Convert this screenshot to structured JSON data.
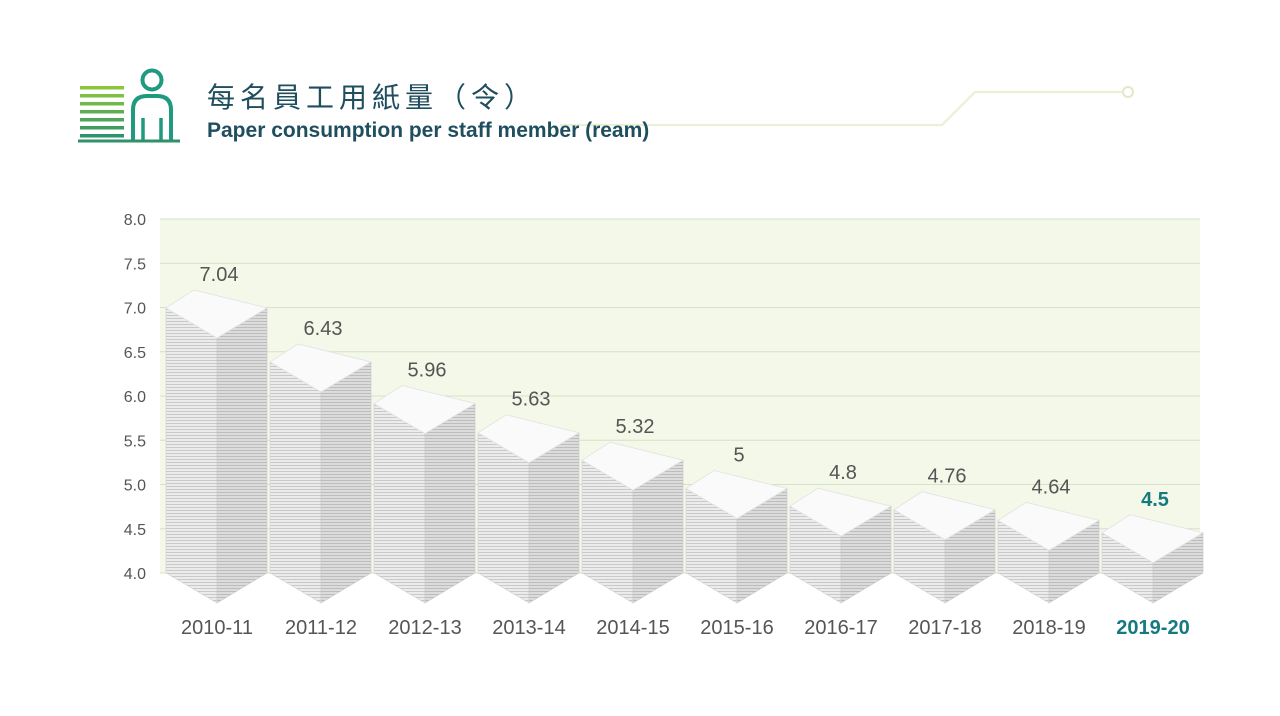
{
  "header": {
    "title_zh": "每名員工用紙量（令）",
    "title_en": "Paper consumption per staff member (ream)",
    "icon": "staff-paper-icon"
  },
  "colors": {
    "title": "#1f4e5f",
    "accent_green": "#8cc63f",
    "plot_background": "#f3f8e8",
    "highlight": "#147a7f",
    "stack_face": "#e6e6e6"
  },
  "chart_data": {
    "type": "bar",
    "title": "Paper consumption per staff member (ream)",
    "categories": [
      "2010-11",
      "2011-12",
      "2012-13",
      "2013-14",
      "2014-15",
      "2015-16",
      "2016-17",
      "2017-18",
      "2018-19",
      "2019-20"
    ],
    "values": [
      7.04,
      6.43,
      5.96,
      5.63,
      5.32,
      5,
      4.8,
      4.76,
      4.64,
      4.5
    ],
    "value_labels": [
      "7.04",
      "6.43",
      "5.96",
      "5.63",
      "5.32",
      "5",
      "4.8",
      "4.76",
      "4.64",
      "4.5"
    ],
    "highlight_category": "2019-20",
    "ylim": [
      4.0,
      8.0
    ],
    "yticks": [
      "4.0",
      "4.5",
      "5.0",
      "5.5",
      "6.0",
      "6.5",
      "7.0",
      "7.5",
      "8.0"
    ],
    "xlabel": "",
    "ylabel": "",
    "grid": true,
    "mark_style": "stacked paper ream"
  }
}
